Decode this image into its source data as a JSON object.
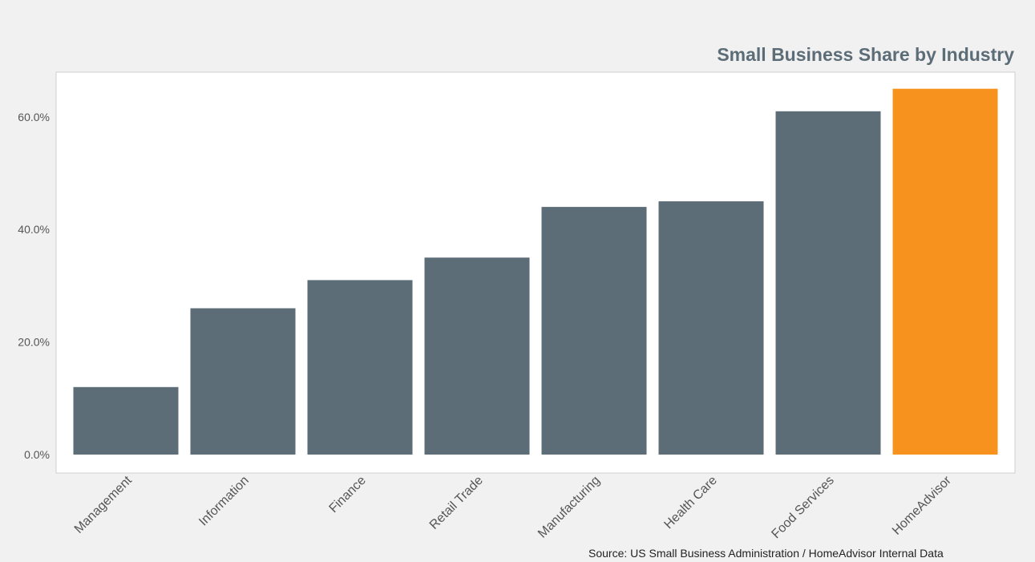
{
  "chart_data": {
    "type": "bar",
    "title": "Small Business Share by Industry",
    "categories": [
      "Management",
      "Information",
      "Finance",
      "Retail Trade",
      "Manufacturing",
      "Health Care",
      "Food Services",
      "HomeAdvisor"
    ],
    "values": [
      12.0,
      26.0,
      31.0,
      35.0,
      44.0,
      45.0,
      61.0,
      65.0
    ],
    "value_format": "percent",
    "yticks": [
      "0.0%",
      "20.0%",
      "40.0%",
      "60.0%"
    ],
    "ytick_values": [
      0,
      20,
      40,
      60
    ],
    "ylim": [
      0,
      68
    ],
    "grid": false,
    "colors": {
      "default_bar": "#5d6d78",
      "highlight_bar": "#f7921e",
      "title": "#5d6d78",
      "plot_background": "#ffffff",
      "page_background": "#f1f1f1"
    },
    "highlight_category": "HomeAdvisor",
    "source": "Source: US Small Business Administration / HomeAdvisor Internal Data"
  }
}
